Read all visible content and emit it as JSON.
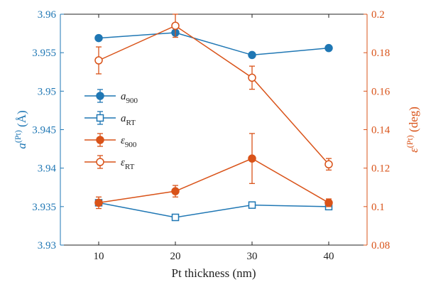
{
  "chart_data": {
    "type": "line",
    "x": [
      10,
      20,
      30,
      40
    ],
    "xlabel": "Pt thickness (nm)",
    "xlim": [
      5,
      45
    ],
    "xticks": [
      10,
      20,
      30,
      40
    ],
    "ylabel_left": {
      "base": "a",
      "sup": "(Pt)",
      "unit": "(Å)"
    },
    "ylim_left": [
      3.93,
      3.96
    ],
    "yticks_left": [
      "3.93",
      "3.935",
      "3.94",
      "3.945",
      "3.95",
      "3.955",
      "3.96"
    ],
    "ylabel_right": {
      "base": "ε",
      "sup": "(Pt)",
      "unit": "(deg)"
    },
    "ylim_right": [
      0.08,
      0.2
    ],
    "yticks_right": [
      "0.08",
      "0.1",
      "0.12",
      "0.14",
      "0.16",
      "0.18",
      "0.2"
    ],
    "legend_location": "left-center",
    "series": [
      {
        "name": "a900",
        "label_base": "a",
        "label_sub": "900",
        "axis": "left",
        "color": "#1f77b4",
        "marker": "filled",
        "values": [
          3.9569,
          3.9576,
          3.9547,
          3.9556
        ],
        "err": [
          0.0002,
          0.0002,
          0.0003,
          0.0002
        ]
      },
      {
        "name": "aRT",
        "label_base": "a",
        "label_sub": "RT",
        "axis": "left",
        "color": "#1f77b4",
        "marker": "open",
        "values": [
          3.9355,
          3.9336,
          3.9352,
          3.935
        ],
        "err": [
          0.0002,
          0.0002,
          0.0002,
          0.0002
        ]
      },
      {
        "name": "ε900",
        "label_base": "ε",
        "label_sub": "900",
        "axis": "right",
        "color": "#d95319",
        "marker": "filled",
        "values": [
          0.102,
          0.108,
          0.125,
          0.102
        ],
        "err": [
          0.003,
          0.003,
          0.013,
          0.002
        ]
      },
      {
        "name": "εRT",
        "label_base": "ε",
        "label_sub": "RT",
        "axis": "right",
        "color": "#d95319",
        "marker": "open",
        "values": [
          0.176,
          0.194,
          0.167,
          0.122
        ],
        "err": [
          0.007,
          0.006,
          0.006,
          0.003
        ]
      }
    ]
  }
}
